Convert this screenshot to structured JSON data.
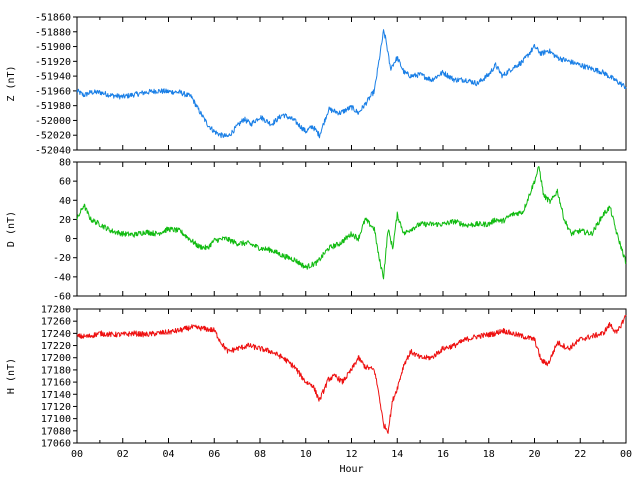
{
  "chart_data": [
    {
      "type": "line",
      "ylabel": "Z (nT)",
      "ylim": [
        -52040,
        -51860
      ],
      "yticks": [
        -51860,
        -51880,
        -51900,
        -51920,
        -51940,
        -51960,
        -51980,
        -52000,
        -52020,
        -52040
      ],
      "color": "#1a7fe6",
      "series": [
        {
          "x": [
            0,
            0.3,
            0.6,
            1,
            1.5,
            2,
            2.5,
            3,
            3.5,
            4,
            4.5,
            5,
            5.3,
            5.7,
            6,
            6.3,
            6.6,
            7,
            7.3,
            7.6,
            8,
            8.5,
            9,
            9.5,
            10,
            10.3,
            10.6,
            11,
            11.5,
            12,
            12.3,
            12.6,
            13,
            13.2,
            13.4,
            13.5,
            13.7,
            14,
            14.3,
            14.6,
            15,
            15.5,
            16,
            16.5,
            17,
            17.5,
            18,
            18.3,
            18.6,
            19,
            19.5,
            20,
            20.3,
            20.6,
            21,
            21.5,
            22,
            22.5,
            23,
            23.5,
            24
          ],
          "values": [
            -51960,
            -51966,
            -51962,
            -51962,
            -51966,
            -51968,
            -51965,
            -51962,
            -51960,
            -51961,
            -51962,
            -51968,
            -51985,
            -52005,
            -52015,
            -52020,
            -52022,
            -52008,
            -51998,
            -52005,
            -51995,
            -52005,
            -51992,
            -52000,
            -52015,
            -52008,
            -52020,
            -51985,
            -51990,
            -51982,
            -51990,
            -51978,
            -51960,
            -51920,
            -51880,
            -51890,
            -51930,
            -51915,
            -51935,
            -51940,
            -51938,
            -51945,
            -51935,
            -51945,
            -51945,
            -51950,
            -51938,
            -51925,
            -51940,
            -51930,
            -51920,
            -51900,
            -51910,
            -51905,
            -51915,
            -51920,
            -51925,
            -51930,
            -51935,
            -51945,
            -51955
          ]
        }
      ]
    },
    {
      "type": "line",
      "ylabel": "D (nT)",
      "ylim": [
        -60,
        80
      ],
      "yticks": [
        80,
        60,
        40,
        20,
        0,
        -20,
        -40,
        -60
      ],
      "color": "#11bb11",
      "series": [
        {
          "x": [
            0,
            0.3,
            0.6,
            1,
            1.5,
            2,
            2.5,
            3,
            3.5,
            4,
            4.5,
            5,
            5.3,
            5.7,
            6,
            6.5,
            7,
            7.5,
            8,
            8.5,
            9,
            9.5,
            10,
            10.5,
            11,
            11.5,
            12,
            12.3,
            12.6,
            13,
            13.2,
            13.4,
            13.6,
            13.8,
            14,
            14.3,
            14.6,
            15,
            15.5,
            16,
            16.5,
            17,
            17.5,
            18,
            18.3,
            18.6,
            19,
            19.5,
            20,
            20.2,
            20.4,
            20.7,
            21,
            21.3,
            21.6,
            22,
            22.5,
            23,
            23.3,
            23.6,
            24
          ],
          "values": [
            20,
            35,
            20,
            15,
            8,
            5,
            4,
            7,
            5,
            10,
            8,
            -2,
            -8,
            -10,
            -2,
            0,
            -5,
            -5,
            -10,
            -12,
            -18,
            -22,
            -30,
            -25,
            -10,
            -5,
            5,
            0,
            20,
            10,
            -20,
            -40,
            10,
            -10,
            25,
            5,
            10,
            15,
            15,
            15,
            18,
            14,
            15,
            15,
            20,
            18,
            25,
            28,
            60,
            75,
            45,
            38,
            50,
            20,
            5,
            8,
            5,
            25,
            33,
            5,
            -25
          ]
        }
      ]
    },
    {
      "type": "line",
      "ylabel": "H (nT)",
      "xlabel": "Hour",
      "ylim": [
        17060,
        17280
      ],
      "yticks": [
        17280,
        17260,
        17240,
        17220,
        17200,
        17180,
        17160,
        17140,
        17120,
        17100,
        17080,
        17060
      ],
      "xticks": [
        "00",
        "02",
        "04",
        "06",
        "08",
        "10",
        "12",
        "14",
        "16",
        "18",
        "20",
        "22",
        "00"
      ],
      "xlim": [
        0,
        24
      ],
      "color": "#ee1111",
      "series": [
        {
          "x": [
            0,
            0.5,
            1,
            1.5,
            2,
            2.5,
            3,
            3.5,
            4,
            4.5,
            5,
            5.5,
            6,
            6.3,
            6.6,
            7,
            7.5,
            8,
            8.5,
            9,
            9.5,
            10,
            10.3,
            10.6,
            11,
            11.3,
            11.6,
            12,
            12.3,
            12.6,
            13,
            13.2,
            13.4,
            13.6,
            13.8,
            14,
            14.3,
            14.6,
            15,
            15.5,
            16,
            16.5,
            17,
            17.5,
            18,
            18.3,
            18.6,
            19,
            19.5,
            20,
            20.3,
            20.6,
            21,
            21.5,
            22,
            22.5,
            23,
            23.3,
            23.6,
            24
          ],
          "values": [
            17235,
            17235,
            17240,
            17238,
            17238,
            17240,
            17238,
            17240,
            17242,
            17245,
            17250,
            17248,
            17245,
            17225,
            17210,
            17215,
            17220,
            17215,
            17210,
            17200,
            17185,
            17160,
            17155,
            17130,
            17165,
            17170,
            17160,
            17180,
            17200,
            17185,
            17180,
            17140,
            17090,
            17080,
            17130,
            17150,
            17190,
            17210,
            17200,
            17200,
            17215,
            17220,
            17230,
            17235,
            17238,
            17240,
            17245,
            17240,
            17235,
            17230,
            17195,
            17190,
            17225,
            17215,
            17230,
            17235,
            17240,
            17255,
            17240,
            17270
          ]
        }
      ]
    }
  ]
}
